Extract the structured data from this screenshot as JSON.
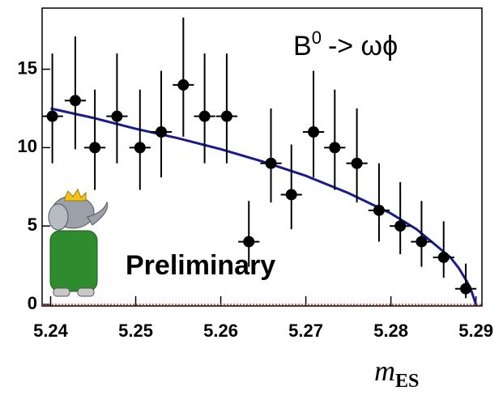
{
  "chart_data": {
    "type": "errorbar_scatter",
    "annotation": {
      "main": "B",
      "sup": "0",
      "rest": "-> ωϕ"
    },
    "watermark": "Preliminary",
    "x_label": {
      "main": "m",
      "sub": "ES"
    },
    "xlim": [
      5.239,
      5.2907
    ],
    "ylim": [
      -0.1,
      18.9
    ],
    "xticks": [
      5.24,
      5.25,
      5.26,
      5.27,
      5.28,
      5.29
    ],
    "yticks": [
      0,
      5,
      10,
      15
    ],
    "bin_width": 0.0025,
    "x": [
      5.2402,
      5.2429,
      5.2452,
      5.2478,
      5.2505,
      5.253,
      5.2556,
      5.2581,
      5.2607,
      5.2633,
      5.2659,
      5.2683,
      5.2709,
      5.2734,
      5.276,
      5.2786,
      5.2811,
      5.2836,
      5.2862,
      5.2888
    ],
    "values": [
      12,
      13,
      10,
      12,
      10,
      11,
      14,
      12,
      12,
      4,
      9,
      7,
      11,
      10,
      9,
      6,
      5,
      4,
      3,
      1
    ],
    "err_low": [
      3.0,
      3.1,
      2.7,
      3.0,
      2.7,
      2.9,
      3.3,
      3.0,
      3.0,
      1.6,
      2.5,
      2.2,
      2.9,
      2.7,
      2.5,
      2.0,
      1.8,
      1.6,
      1.3,
      0.6
    ],
    "err_high": [
      4.0,
      4.1,
      3.7,
      4.0,
      3.7,
      3.9,
      4.3,
      4.0,
      4.0,
      2.6,
      3.5,
      3.2,
      3.9,
      3.7,
      3.5,
      3.0,
      2.8,
      2.6,
      2.3,
      1.6
    ],
    "marker_color": "#000000",
    "fit": {
      "color": "#1a1a8c",
      "x": [
        5.24,
        5.245,
        5.25,
        5.255,
        5.26,
        5.265,
        5.27,
        5.275,
        5.28,
        5.283,
        5.285,
        5.287,
        5.288,
        5.289,
        5.2895,
        5.29
      ],
      "values": [
        12.5,
        11.9,
        11.2,
        10.6,
        9.9,
        9.1,
        8.2,
        7.1,
        5.8,
        4.8,
        3.9,
        3.0,
        2.3,
        1.4,
        0.8,
        0
      ]
    },
    "baseline_color": "#e03030"
  }
}
